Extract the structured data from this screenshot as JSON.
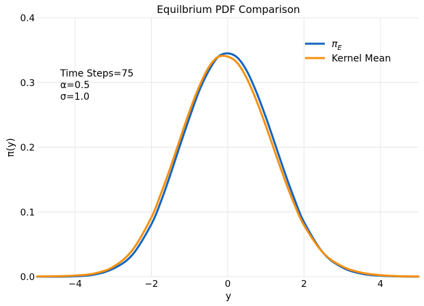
{
  "chart_data": {
    "type": "line",
    "title": "Equilbrium PDF Comparison",
    "xlabel": "y",
    "ylabel": "π(y)",
    "xlim": [
      -5,
      5
    ],
    "ylim": [
      0,
      0.4
    ],
    "xticks": [
      -4,
      -2,
      0,
      2,
      4
    ],
    "xtick_labels": [
      "−4",
      "−2",
      "0",
      "2",
      "4"
    ],
    "yticks": [
      0.0,
      0.1,
      0.2,
      0.3,
      0.4
    ],
    "ytick_labels": [
      "0.0",
      "0.1",
      "0.2",
      "0.3",
      "0.4"
    ],
    "grid": true,
    "legend_position": "top-right",
    "annotation": [
      "Time Steps=75",
      "α=0.5",
      "σ=1.0"
    ],
    "series": [
      {
        "name": "π_E",
        "legend_main": "π",
        "legend_sub": "E",
        "color": "#1565c0",
        "x": [
          -5,
          -4.5,
          -4,
          -3.5,
          -3,
          -2.5,
          -2,
          -1.75,
          -1.5,
          -1.25,
          -1,
          -0.75,
          -0.5,
          -0.25,
          0,
          0.25,
          0.5,
          0.75,
          1,
          1.25,
          1.5,
          1.75,
          2,
          2.5,
          3,
          3.5,
          4,
          4.5,
          5
        ],
        "y": [
          0.0,
          0.0,
          0.0005,
          0.0032,
          0.0123,
          0.0336,
          0.0811,
          0.1163,
          0.1582,
          0.2029,
          0.2461,
          0.2867,
          0.3178,
          0.3397,
          0.345,
          0.3386,
          0.3179,
          0.2853,
          0.2462,
          0.2032,
          0.1598,
          0.1196,
          0.0841,
          0.0368,
          0.0143,
          0.0046,
          0.0014,
          0.0004,
          0.0
        ]
      },
      {
        "name": "Kernel Mean",
        "color": "#f5900e",
        "x": [
          -5,
          -4.5,
          -4,
          -3.5,
          -3,
          -2.5,
          -2,
          -1.75,
          -1.5,
          -1.25,
          -1,
          -0.75,
          -0.5,
          -0.25,
          0,
          0.25,
          0.5,
          0.75,
          1,
          1.25,
          1.5,
          1.75,
          2,
          2.5,
          3,
          3.5,
          4,
          4.5,
          5
        ],
        "y": [
          0.0003,
          0.0007,
          0.0016,
          0.0048,
          0.0152,
          0.0408,
          0.0915,
          0.1284,
          0.1689,
          0.2126,
          0.2556,
          0.2934,
          0.3233,
          0.3396,
          0.34,
          0.3303,
          0.3063,
          0.2724,
          0.2327,
          0.1905,
          0.149,
          0.1112,
          0.0793,
          0.0368,
          0.0159,
          0.0062,
          0.0022,
          0.0007,
          0.0002
        ]
      }
    ]
  }
}
